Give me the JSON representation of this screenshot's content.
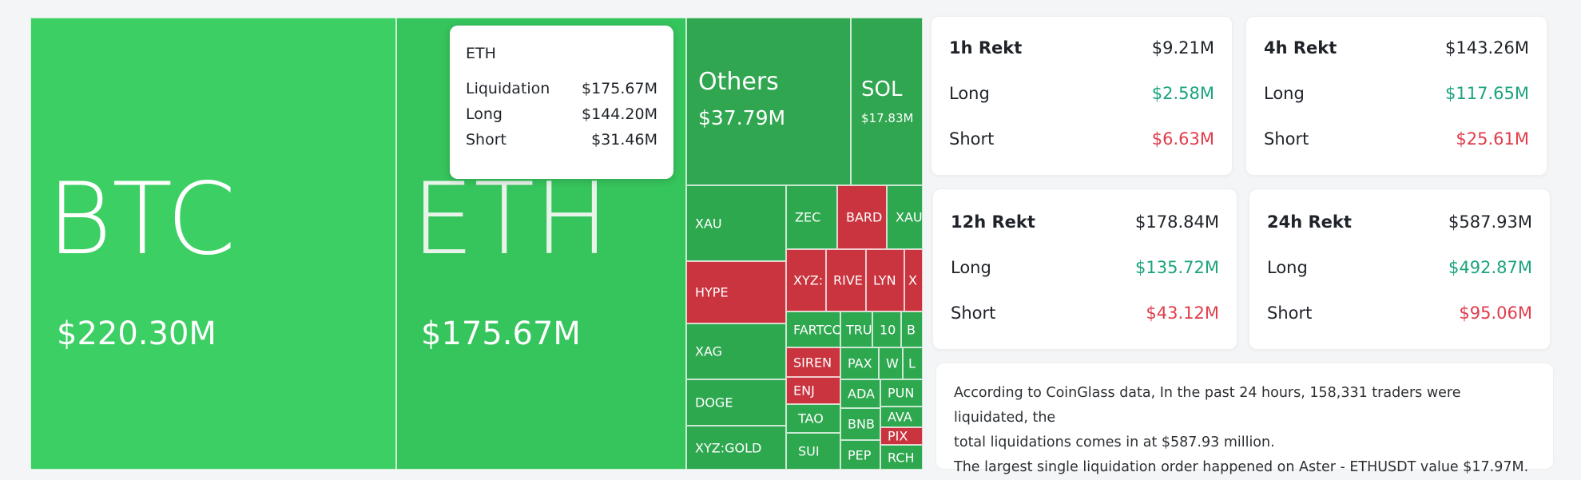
{
  "treemap": {
    "cells": [
      {
        "symbol": "BTC",
        "value": "$220.30M"
      },
      {
        "symbol": "ETH",
        "value": "$175.67M"
      },
      {
        "symbol": "Others",
        "value": "$37.79M"
      },
      {
        "symbol": "SOL",
        "value": "$17.83M"
      },
      {
        "symbol": "XAU"
      },
      {
        "symbol": "ZEC"
      },
      {
        "symbol": "BARD"
      },
      {
        "symbol": "XAU"
      },
      {
        "symbol": "HYPE"
      },
      {
        "symbol": "XYZ:"
      },
      {
        "symbol": "RIVE"
      },
      {
        "symbol": "LYN"
      },
      {
        "symbol": "X"
      },
      {
        "symbol": "XAG"
      },
      {
        "symbol": "FARTCO"
      },
      {
        "symbol": "TRU"
      },
      {
        "symbol": "10"
      },
      {
        "symbol": "B"
      },
      {
        "symbol": "SIREN"
      },
      {
        "symbol": "DOGE"
      },
      {
        "symbol": "ENJ"
      },
      {
        "symbol": "PAX"
      },
      {
        "symbol": "W"
      },
      {
        "symbol": "L"
      },
      {
        "symbol": "TAO"
      },
      {
        "symbol": "ADA"
      },
      {
        "symbol": "PUN"
      },
      {
        "symbol": "AVA"
      },
      {
        "symbol": "XYZ:GOLD"
      },
      {
        "symbol": "SUI"
      },
      {
        "symbol": "BNB"
      },
      {
        "symbol": "PIX"
      },
      {
        "symbol": "PEP"
      },
      {
        "symbol": "RCH"
      }
    ],
    "colors": {
      "green": "#2ea84f",
      "bright_green": "#3ccf63",
      "red": "#c9343f"
    }
  },
  "tooltip": {
    "title": "ETH",
    "rows": [
      {
        "label": "Liquidation",
        "value": "$175.67M"
      },
      {
        "label": "Long",
        "value": "$144.20M"
      },
      {
        "label": "Short",
        "value": "$31.46M"
      }
    ]
  },
  "stats": [
    {
      "title": "1h Rekt",
      "total": "$9.21M",
      "long_label": "Long",
      "long": "$2.58M",
      "short_label": "Short",
      "short": "$6.63M"
    },
    {
      "title": "4h Rekt",
      "total": "$143.26M",
      "long_label": "Long",
      "long": "$117.65M",
      "short_label": "Short",
      "short": "$25.61M"
    },
    {
      "title": "12h Rekt",
      "total": "$178.84M",
      "long_label": "Long",
      "long": "$135.72M",
      "short_label": "Short",
      "short": "$43.12M"
    },
    {
      "title": "24h Rekt",
      "total": "$587.93M",
      "long_label": "Long",
      "long": "$492.87M",
      "short_label": "Short",
      "short": "$95.06M"
    }
  ],
  "summary": {
    "line1": "According to CoinGlass data, In the past 24 hours, 158,331 traders were liquidated, the",
    "line2": "total liquidations comes in at $587.93 million.",
    "line3": "The largest single liquidation order happened on Aster - ETHUSDT value $17.97M."
  }
}
